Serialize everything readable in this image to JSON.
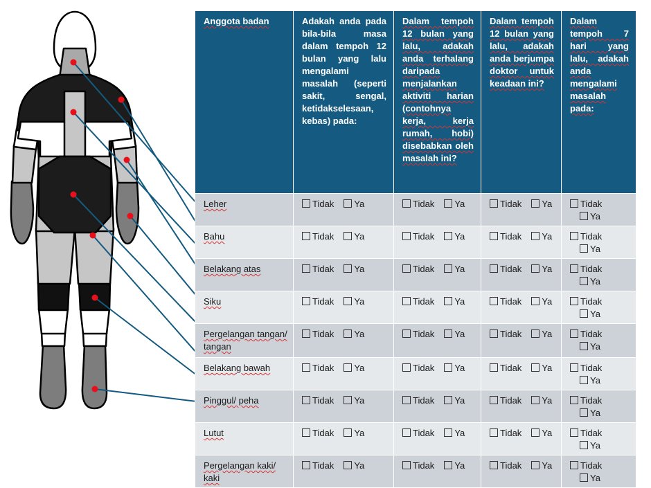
{
  "header": {
    "col0": "Anggota badan",
    "col1": "Adakah anda pada bila-bila masa dalam tempoh 12 bulan yang lalu mengalami masalah (seperti sakit, sengal, ketidakselesaan, kebas) pada:",
    "col2": "Dalam tempoh 12 bulan yang lalu, adakah anda terhalang daripada menjalankan aktiviti harian (contohnya kerja, kerja rumah, hobi) disebabkan oleh masalah ini?",
    "col3": "Dalam tempoh 12 bulan yang lalu, adakah anda berjumpa doktor untuk keadaan ini?",
    "col4": "Dalam tempoh 7 hari yang lalu, adakah anda mengalami masalah pada:"
  },
  "options": {
    "no": "Tidak",
    "yes": "Ya"
  },
  "rows": [
    {
      "part": "Leher"
    },
    {
      "part": "Bahu"
    },
    {
      "part": "Belakang atas"
    },
    {
      "part": "Siku"
    },
    {
      "part": "Pergelangan tangan/ tangan"
    },
    {
      "part": "Belakang bawah"
    },
    {
      "part": "Pinggul/ peha"
    },
    {
      "part": "Lutut"
    },
    {
      "part": "Pergelangan kaki/ kaki"
    }
  ],
  "colors": {
    "header_bg": "#155a80",
    "row_odd": "#cdd2d8",
    "row_even": "#e6e9ec",
    "marker": "#e8101a",
    "leader_line": "#155a80"
  }
}
